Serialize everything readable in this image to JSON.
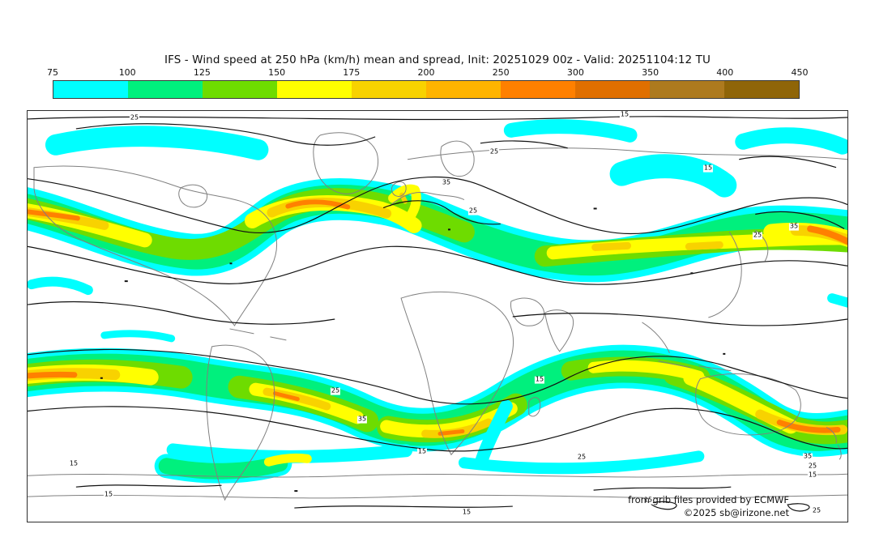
{
  "title": "IFS - Wind speed at 250 hPa (km/h) mean and spread, Init: 20251029 00z - Valid: 20251104:12 TU",
  "colorbar": {
    "ticks": [
      "75",
      "100",
      "125",
      "150",
      "175",
      "200",
      "250",
      "300",
      "350",
      "400",
      "450"
    ],
    "segments": [
      {
        "from": 75,
        "to": 100,
        "color": "#00ffff"
      },
      {
        "from": 100,
        "to": 125,
        "color": "#00f07d"
      },
      {
        "from": 125,
        "to": 150,
        "color": "#6edc00"
      },
      {
        "from": 150,
        "to": 175,
        "color": "#ffff00"
      },
      {
        "from": 175,
        "to": 200,
        "color": "#f8d200"
      },
      {
        "from": 200,
        "to": 250,
        "color": "#ffb400"
      },
      {
        "from": 250,
        "to": 300,
        "color": "#ff8000"
      },
      {
        "from": 300,
        "to": 350,
        "color": "#e06f00"
      },
      {
        "from": 350,
        "to": 400,
        "color": "#ad7a1e"
      },
      {
        "from": 400,
        "to": 450,
        "color": "#8f6508"
      }
    ]
  },
  "map": {
    "contour_labels": [
      "15",
      "25",
      "25",
      "35",
      "25",
      "15",
      "35",
      "25",
      "25",
      "35",
      "15",
      "15",
      "25",
      "35",
      "25",
      "15",
      "15",
      "15",
      "15",
      "25",
      "15"
    ],
    "attribution_line1": "from grib files provided by ECMWF",
    "attribution_line2": "©2025 sb@irizone.net"
  },
  "chart_data": {
    "type": "heatmap",
    "title": "IFS - Wind speed at 250 hPa (km/h) mean and spread, Init: 20251029 00z - Valid: 20251104:12 TU",
    "colorbar_ticks": [
      75,
      100,
      125,
      150,
      175,
      200,
      250,
      300,
      350,
      400,
      450
    ],
    "colorbar_colors": [
      "#00ffff",
      "#00f07d",
      "#6edc00",
      "#ffff00",
      "#f8d200",
      "#ffb400",
      "#ff8000",
      "#e06f00",
      "#ad7a1e",
      "#8f6508"
    ],
    "spread_contour_levels": [
      15,
      25,
      35
    ],
    "legend_position": "top",
    "projection": "equirectangular world map"
  }
}
